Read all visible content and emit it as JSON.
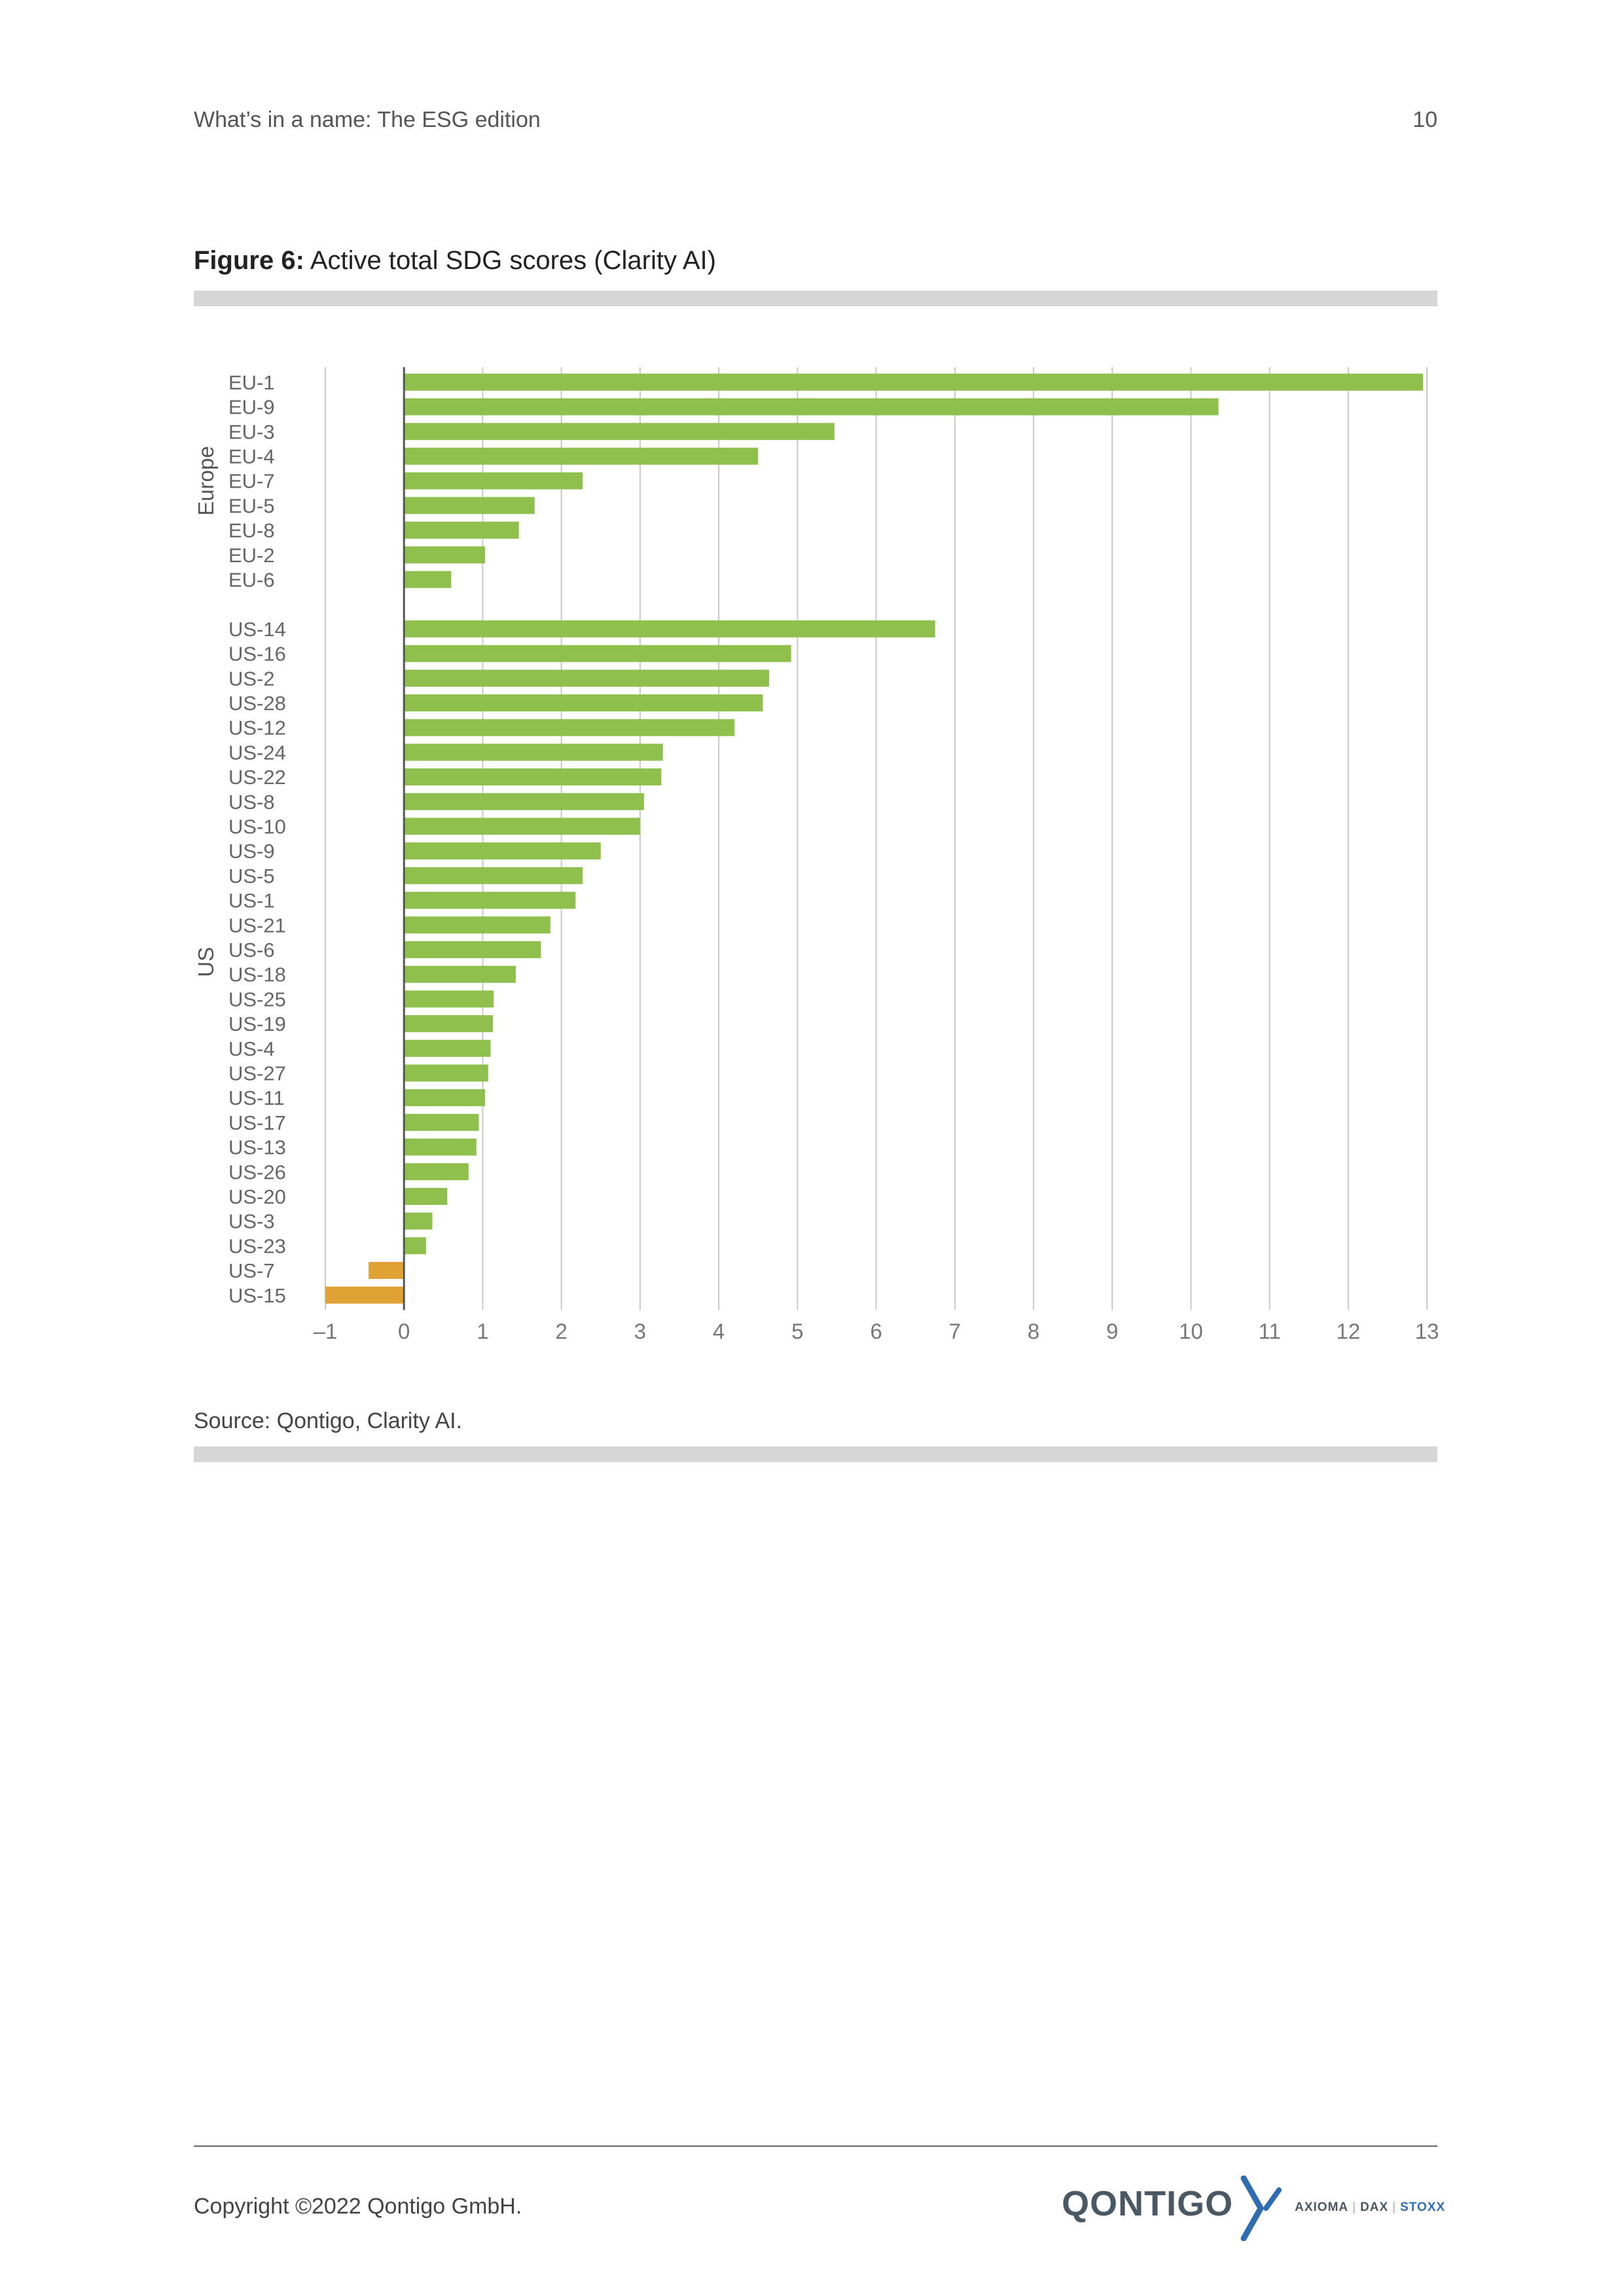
{
  "header": {
    "title": "What’s in a name: The ESG edition",
    "page_number": "10"
  },
  "figure": {
    "number": "Figure 6:",
    "title": "Active total SDG scores (Clarity AI)"
  },
  "source": "Source: Qontigo, Clarity AI.",
  "footer": {
    "copyright": "Copyright ©2022 Qontigo GmbH.",
    "logo_text": "QONTIGO",
    "brands": [
      "AXIOMA",
      "DAX",
      "STOXX"
    ]
  },
  "colors": {
    "positive": "#8fbf4d",
    "negative": "#e0a235",
    "grid": "#c8c8c8",
    "axis": "#555555"
  },
  "chart_data": {
    "type": "bar",
    "orientation": "horizontal",
    "title": "",
    "xlabel": "",
    "ylabel": "",
    "xlim": [
      -1,
      13
    ],
    "xticks": [
      "–1",
      "0",
      "1",
      "2",
      "3",
      "4",
      "5",
      "6",
      "7",
      "8",
      "9",
      "10",
      "11",
      "12",
      "13"
    ],
    "grid": true,
    "legend": "none",
    "groups": [
      {
        "name": "Europe",
        "categories": [
          "EU-1",
          "EU-9",
          "EU-3",
          "EU-4",
          "EU-7",
          "EU-5",
          "EU-8",
          "EU-2",
          "EU-6"
        ],
        "values": [
          12.95,
          10.35,
          5.47,
          4.5,
          2.27,
          1.66,
          1.46,
          1.03,
          0.6
        ]
      },
      {
        "name": "US",
        "categories": [
          "US-14",
          "US-16",
          "US-2",
          "US-28",
          "US-12",
          "US-24",
          "US-22",
          "US-8",
          "US-10",
          "US-9",
          "US-5",
          "US-1",
          "US-21",
          "US-6",
          "US-18",
          "US-25",
          "US-19",
          "US-4",
          "US-27",
          "US-11",
          "US-17",
          "US-13",
          "US-26",
          "US-20",
          "US-3",
          "US-23",
          "US-7",
          "US-15"
        ],
        "values": [
          6.75,
          4.92,
          4.64,
          4.56,
          4.2,
          3.29,
          3.27,
          3.05,
          3.0,
          2.5,
          2.27,
          2.18,
          1.86,
          1.74,
          1.42,
          1.14,
          1.13,
          1.1,
          1.07,
          1.03,
          0.95,
          0.92,
          0.82,
          0.55,
          0.36,
          0.28,
          -0.45,
          -1.0
        ]
      }
    ]
  }
}
